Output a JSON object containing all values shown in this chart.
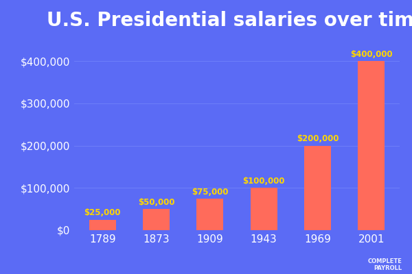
{
  "title": "U.S. Presidential salaries over time",
  "categories": [
    "1789",
    "1873",
    "1909",
    "1943",
    "1969",
    "2001"
  ],
  "values": [
    25000,
    50000,
    75000,
    100000,
    200000,
    400000
  ],
  "bar_color": "#FF6B5B",
  "background_color": "#5B6BF5",
  "text_color": "#FFFFFF",
  "label_color": "#FFD700",
  "grid_color": "#8899FF",
  "title_fontsize": 20,
  "tick_fontsize": 11,
  "label_fontsize": 8.5,
  "ylim": [
    0,
    460000
  ],
  "yticks": [
    0,
    100000,
    200000,
    300000,
    400000
  ],
  "ytick_labels": [
    "$0",
    "$100,000",
    "$200,000",
    "$300,000",
    "$400,000"
  ],
  "bar_labels": [
    "$25,000",
    "$50,000",
    "$75,000",
    "$100,000",
    "$200,000",
    "$400,000"
  ],
  "logo_text": "☀ COMPLETE\n   PAYROLL",
  "logo_fontsize": 6,
  "bar_width": 0.5
}
